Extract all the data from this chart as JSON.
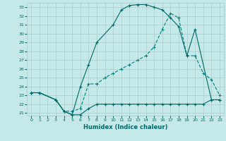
{
  "xlabel": "Humidex (Indice chaleur)",
  "xlim": [
    -0.5,
    23.5
  ],
  "ylim": [
    20.7,
    33.5
  ],
  "yticks": [
    21,
    22,
    23,
    24,
    25,
    26,
    27,
    28,
    29,
    30,
    31,
    32,
    33
  ],
  "xticks": [
    0,
    1,
    2,
    3,
    4,
    5,
    6,
    7,
    8,
    9,
    10,
    11,
    12,
    13,
    14,
    15,
    16,
    17,
    18,
    19,
    20,
    21,
    22,
    23
  ],
  "bg_color": "#c5e8e8",
  "grid_color": "#aacaca",
  "line_color1": "#006868",
  "line_color2": "#006868",
  "line_color3": "#008080",
  "curve1_x": [
    0,
    1,
    3,
    4,
    5,
    6,
    7,
    8,
    9,
    10,
    11,
    12,
    13,
    14,
    15,
    16,
    17,
    18,
    19,
    20,
    21,
    22,
    23
  ],
  "curve1_y": [
    23.3,
    23.3,
    22.5,
    21.2,
    20.8,
    20.8,
    21.5,
    22.0,
    22.0,
    22.0,
    22.0,
    22.0,
    22.0,
    22.0,
    22.0,
    22.0,
    22.0,
    22.0,
    22.0,
    22.0,
    22.0,
    22.5,
    22.5
  ],
  "curve2_x": [
    0,
    1,
    3,
    4,
    5,
    6,
    7,
    8,
    10,
    11,
    12,
    13,
    14,
    15,
    16,
    17,
    18,
    19,
    20,
    22,
    23
  ],
  "curve2_y": [
    23.3,
    23.3,
    22.5,
    21.2,
    20.8,
    24.0,
    26.5,
    29.0,
    31.0,
    32.7,
    33.2,
    33.3,
    33.3,
    33.0,
    32.7,
    31.8,
    30.8,
    27.5,
    30.5,
    22.5,
    22.5
  ],
  "curve3_x": [
    0,
    1,
    3,
    4,
    5,
    6,
    7,
    8,
    9,
    10,
    11,
    12,
    13,
    14,
    15,
    16,
    17,
    18,
    19,
    20,
    21,
    22,
    23
  ],
  "curve3_y": [
    23.3,
    23.3,
    22.5,
    21.2,
    21.2,
    21.5,
    24.3,
    24.3,
    25.0,
    25.5,
    26.0,
    26.5,
    27.0,
    27.5,
    28.5,
    30.5,
    32.3,
    31.8,
    27.5,
    27.5,
    25.5,
    24.8,
    23.0
  ]
}
